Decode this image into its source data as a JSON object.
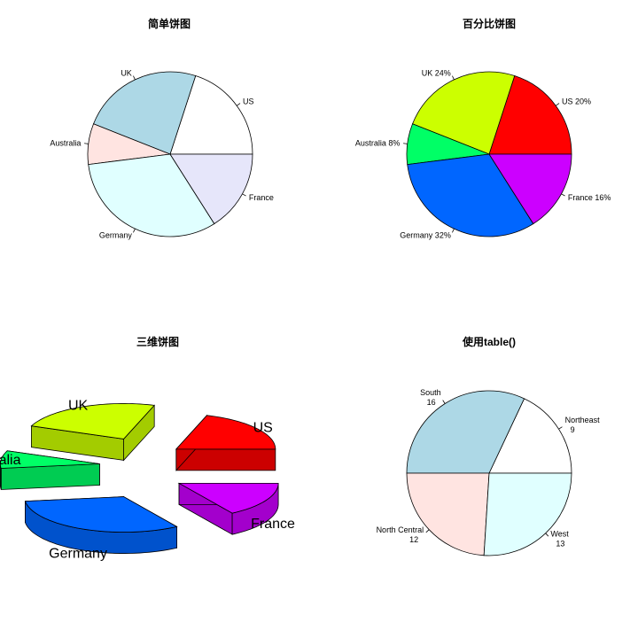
{
  "chart_data": [
    {
      "type": "pie",
      "title": "简单饼图",
      "categories": [
        "US",
        "UK",
        "Australia",
        "Germany",
        "France"
      ],
      "values": [
        10,
        12,
        4,
        16,
        8
      ],
      "labels": [
        "US",
        "UK",
        "Australia",
        "Germany",
        "France"
      ],
      "colors": [
        "#FFFFFF",
        "#ADD8E6",
        "#FFE4E1",
        "#E0FFFF",
        "#E6E6FA"
      ]
    },
    {
      "type": "pie",
      "title": "百分比饼图",
      "categories": [
        "US",
        "UK",
        "Australia",
        "Germany",
        "France"
      ],
      "values": [
        10,
        12,
        4,
        16,
        8
      ],
      "labels": [
        "US 20%",
        "UK 24%",
        "Australia 8%",
        "Germany 32%",
        "France 16%"
      ],
      "colors": [
        "#FF0000",
        "#CCFF00",
        "#00FF66",
        "#0066FF",
        "#CC00FF"
      ]
    },
    {
      "type": "pie",
      "title": "三维饼图",
      "style": "3d-exploded",
      "categories": [
        "US",
        "UK",
        "Australia",
        "Germany",
        "France"
      ],
      "values": [
        10,
        12,
        4,
        16,
        8
      ],
      "labels": [
        "US",
        "UK",
        "Australia",
        "Germany",
        "France"
      ],
      "colors": [
        "#FF0000",
        "#CCFF00",
        "#00FF66",
        "#0066FF",
        "#CC00FF"
      ]
    },
    {
      "type": "pie",
      "title": "使用table()",
      "categories": [
        "Northeast",
        "South",
        "North Central",
        "West"
      ],
      "values": [
        9,
        16,
        12,
        13
      ],
      "labels": [
        [
          "Northeast",
          "9"
        ],
        [
          "South",
          "16"
        ],
        [
          "North Central",
          "12"
        ],
        [
          "West",
          "13"
        ]
      ],
      "colors": [
        "#FFFFFF",
        "#ADD8E6",
        "#FFE4E1",
        "#E0FFFF",
        "#E6E6FA"
      ]
    }
  ]
}
